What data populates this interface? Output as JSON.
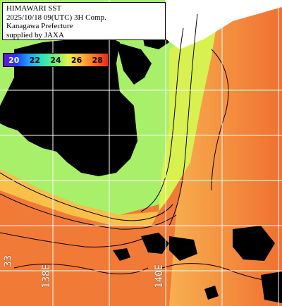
{
  "title_lines": [
    "HIMAWARI SST",
    "2025/10/18 09(UTC) 3H Comp.",
    "Kanagawa Prefecture",
    "supplied by JAXA"
  ],
  "scale": {
    "ticks": [
      "20",
      "22",
      "24",
      "26",
      "28"
    ],
    "colors": [
      "#6a14c8",
      "#1e3cff",
      "#20a0ff",
      "#28e0c8",
      "#70f070",
      "#e6f050",
      "#ffb030",
      "#ff6a20",
      "#e82a18"
    ]
  },
  "grid_labels": {
    "lat_left": "33",
    "lon_138": "138E",
    "lon_140": "140E"
  },
  "colors": {
    "land": "#000000",
    "cloud": "#000000",
    "grid": "#ffffff",
    "sst_warm": "#f07030",
    "sst_mid": "#f8a040",
    "sst_cool": "#a8f070"
  }
}
